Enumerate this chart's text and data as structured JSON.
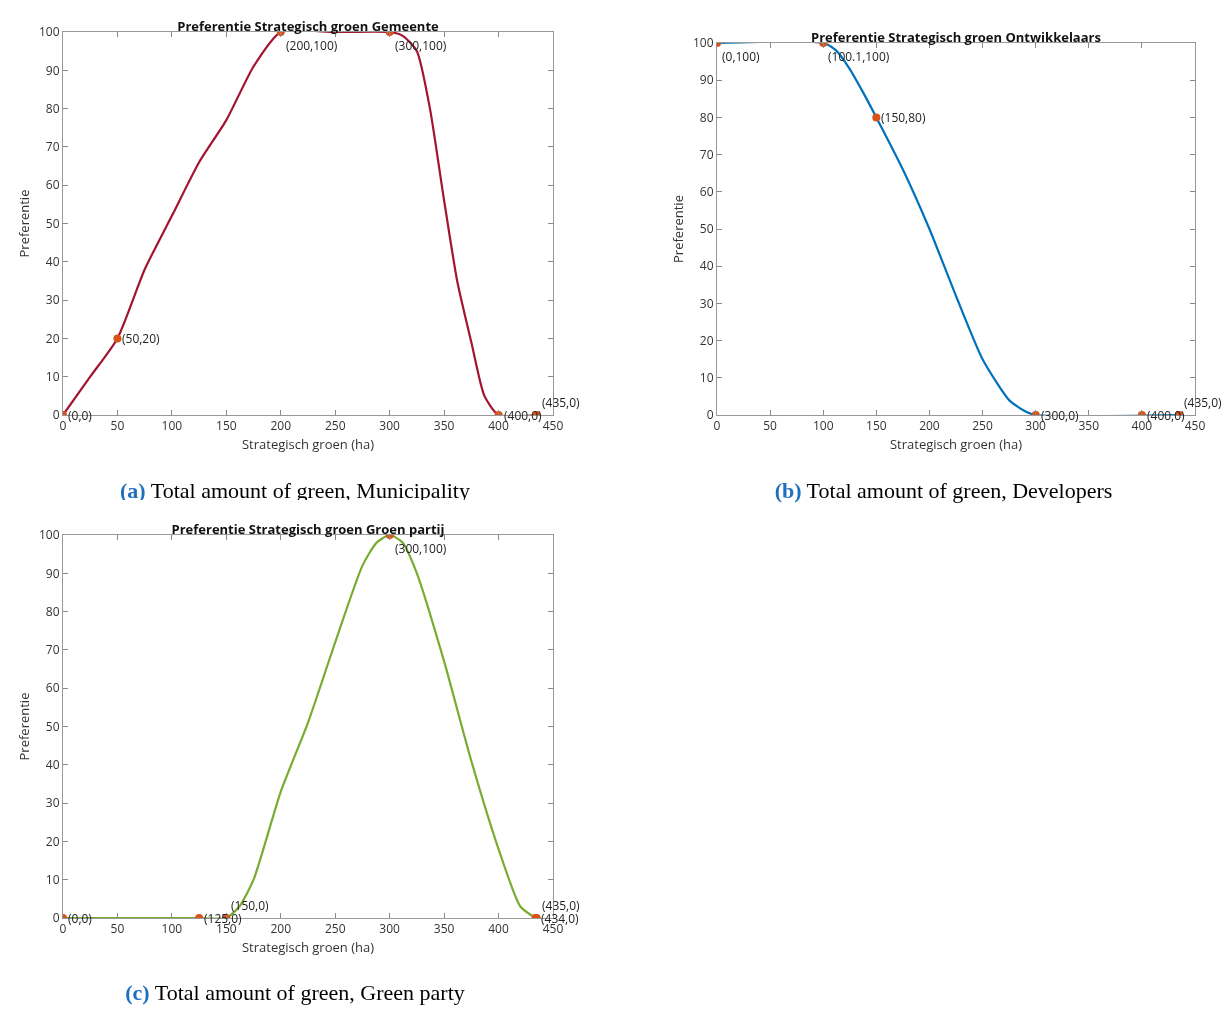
{
  "chart_data": [
    {
      "type": "line",
      "title": "Preferentie Strategisch groen Gemeente",
      "xlabel": "Strategisch groen (ha)",
      "ylabel": "Preferentie",
      "xlim": [
        0,
        450
      ],
      "ylim": [
        0,
        100
      ],
      "xticks": [
        0,
        50,
        100,
        150,
        200,
        250,
        300,
        350,
        400,
        450
      ],
      "yticks": [
        0,
        10,
        20,
        30,
        40,
        50,
        60,
        70,
        80,
        90,
        100
      ],
      "grid": false,
      "series": [
        {
          "type": "line",
          "marker": "none",
          "color": "#a2142f",
          "x": [
            0,
            25,
            50,
            75,
            100,
            125,
            150,
            175,
            200,
            250,
            300,
            312,
            325,
            337,
            350,
            362,
            375,
            387,
            400,
            435
          ],
          "values": [
            0,
            10,
            20,
            38,
            52,
            66,
            77,
            91,
            100,
            100,
            100,
            99,
            95,
            80,
            56,
            35,
            19,
            5,
            0,
            0
          ]
        },
        {
          "type": "scatter",
          "marker": "circle",
          "color": "#d95319",
          "x": [
            0,
            50,
            200,
            300,
            400,
            435
          ],
          "values": [
            0,
            20,
            100,
            100,
            0,
            0
          ]
        }
      ],
      "annotations": [
        {
          "text": "(0,0)",
          "x": 0,
          "y": 0
        },
        {
          "text": "(50,20)",
          "x": 50,
          "y": 20
        },
        {
          "text": "(200,100)",
          "x": 200,
          "y": 100
        },
        {
          "text": "(300,100)",
          "x": 300,
          "y": 100
        },
        {
          "text": "(400,0)",
          "x": 400,
          "y": 0
        },
        {
          "text": "(435,0)",
          "x": 435,
          "y": 0
        },
        "(a) Total amount of green, Municipality"
      ]
    },
    {
      "type": "line",
      "title": "Preferentie Strategisch groen Ontwikkelaars",
      "xlabel": "Strategisch groen (ha)",
      "ylabel": "Preferentie",
      "xlim": [
        0,
        450
      ],
      "ylim": [
        0,
        100
      ],
      "xticks": [
        0,
        50,
        100,
        150,
        200,
        250,
        300,
        350,
        400,
        450
      ],
      "yticks": [
        0,
        10,
        20,
        30,
        40,
        50,
        60,
        70,
        80,
        90,
        100
      ],
      "grid": false,
      "series": [
        {
          "type": "line",
          "marker": "none",
          "color": "#0072bd",
          "x": [
            0,
            100.1,
            112,
            125,
            137,
            150,
            175,
            200,
            225,
            250,
            275,
            290,
            300,
            435
          ],
          "values": [
            100,
            100,
            98,
            93,
            87,
            80,
            66,
            50,
            32,
            15,
            4,
            1,
            0,
            0
          ]
        },
        {
          "type": "scatter",
          "marker": "circle",
          "color": "#d95319",
          "x": [
            0,
            100.1,
            150,
            300,
            400,
            435
          ],
          "values": [
            100,
            100,
            80,
            0,
            0,
            0
          ]
        }
      ],
      "annotations": [
        {
          "text": "(0,100)",
          "x": 0,
          "y": 100
        },
        {
          "text": "(100.1,100)",
          "x": 100.1,
          "y": 100
        },
        {
          "text": "(150,80)",
          "x": 150,
          "y": 80
        },
        {
          "text": "(300,0)",
          "x": 300,
          "y": 0
        },
        {
          "text": "(400,0)",
          "x": 400,
          "y": 0
        },
        {
          "text": "(435,0)",
          "x": 435,
          "y": 0
        },
        "(b) Total amount of green, Developers"
      ]
    },
    {
      "type": "line",
      "title": "Preferentie Strategisch groen Groen partij",
      "xlabel": "Strategisch groen (ha)",
      "ylabel": "Preferentie",
      "xlim": [
        0,
        450
      ],
      "ylim": [
        0,
        100
      ],
      "xticks": [
        0,
        50,
        100,
        150,
        200,
        250,
        300,
        350,
        400,
        450
      ],
      "yticks": [
        0,
        10,
        20,
        30,
        40,
        50,
        60,
        70,
        80,
        90,
        100
      ],
      "grid": false,
      "series": [
        {
          "type": "line",
          "marker": "none",
          "color": "#77ac30",
          "x": [
            0,
            125,
            150,
            162,
            175,
            200,
            225,
            250,
            275,
            288,
            300,
            312,
            325,
            350,
            375,
            400,
            420,
            434
          ],
          "values": [
            0,
            0,
            0,
            3,
            10,
            33,
            51,
            72,
            92,
            98,
            100,
            98,
            90,
            67,
            41,
            18,
            3,
            0
          ]
        },
        {
          "type": "scatter",
          "marker": "circle",
          "color": "#d95319",
          "x": [
            0,
            125,
            150,
            300,
            434,
            435
          ],
          "values": [
            0,
            0,
            0,
            100,
            0,
            0
          ]
        }
      ],
      "annotations": [
        {
          "text": "(0,0)",
          "x": 0,
          "y": 0
        },
        {
          "text": "(125,0)",
          "x": 125,
          "y": 0
        },
        {
          "text": "(150,0)",
          "x": 150,
          "y": 0
        },
        {
          "text": "(300,100)",
          "x": 300,
          "y": 100
        },
        {
          "text": "(434,0)",
          "x": 434,
          "y": 0
        },
        {
          "text": "(435,0)",
          "x": 435,
          "y": 0
        },
        "(c) Total amount of green, Green party"
      ]
    }
  ]
}
